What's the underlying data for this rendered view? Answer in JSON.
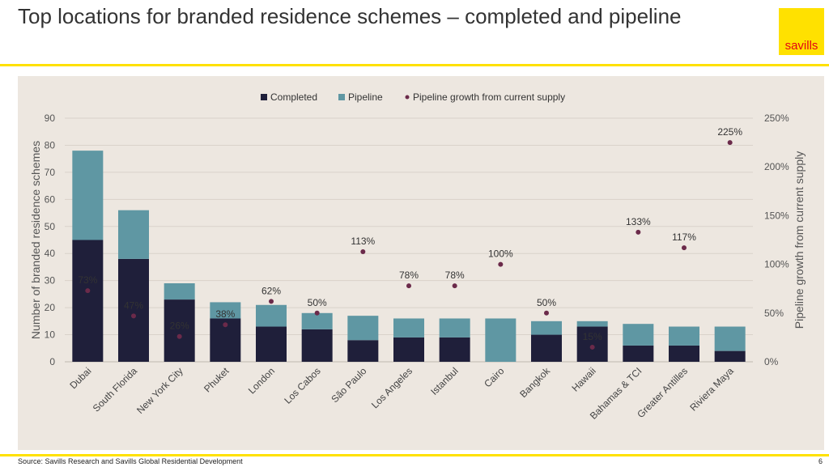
{
  "header": {
    "title": "Top locations for branded residence schemes – completed and pipeline",
    "logo_text": "savills"
  },
  "footer": {
    "source": "Source: Savills Research and Savills Global Residential Development",
    "page_number": "6"
  },
  "colors": {
    "completed": "#1F1F3A",
    "pipeline": "#5F97A3",
    "growth_dot": "#6B2A4A",
    "panel_bg": "#EDE7E0",
    "brand_yellow": "#FFE100",
    "logo_red": "#E30613"
  },
  "chart_data": {
    "type": "bar",
    "stacked": true,
    "categories": [
      "Dubai",
      "South Florida",
      "New York City",
      "Phuket",
      "London",
      "Los Cabos",
      "São Paulo",
      "Los Angeles",
      "Istanbul",
      "Cairo",
      "Bangkok",
      "Hawaii",
      "Bahamas & TCI",
      "Greater Antilles",
      "Riviera Maya"
    ],
    "series": [
      {
        "name": "Completed",
        "type": "bar",
        "axis": "left",
        "values": [
          45,
          38,
          23,
          16,
          13,
          12,
          8,
          9,
          9,
          0,
          10,
          13,
          6,
          6,
          4
        ]
      },
      {
        "name": "Pipeline",
        "type": "bar",
        "axis": "left",
        "values": [
          33,
          18,
          6,
          6,
          8,
          6,
          9,
          7,
          7,
          16,
          5,
          2,
          8,
          7,
          9
        ]
      },
      {
        "name": "Pipeline growth from current supply",
        "type": "scatter",
        "axis": "right",
        "values": [
          73,
          47,
          26,
          38,
          62,
          50,
          113,
          78,
          78,
          100,
          50,
          15,
          133,
          117,
          225
        ],
        "labels": [
          "73%",
          "47%",
          "26%",
          "38%",
          "62%",
          "50%",
          "113%",
          "78%",
          "78%",
          "100%",
          "50%",
          "15%",
          "133%",
          "117%",
          "225%"
        ]
      }
    ],
    "ylabel": "Number of branded residence schemes",
    "y2label": "Pipeline growth from current supply",
    "ylim": [
      0,
      90
    ],
    "y2lim": [
      0,
      250
    ],
    "yticks": [
      "0",
      "10",
      "20",
      "30",
      "40",
      "50",
      "60",
      "70",
      "80",
      "90"
    ],
    "y2ticks": [
      "0%",
      "50%",
      "100%",
      "150%",
      "200%",
      "250%"
    ],
    "grid": true,
    "legend": "top-center"
  }
}
